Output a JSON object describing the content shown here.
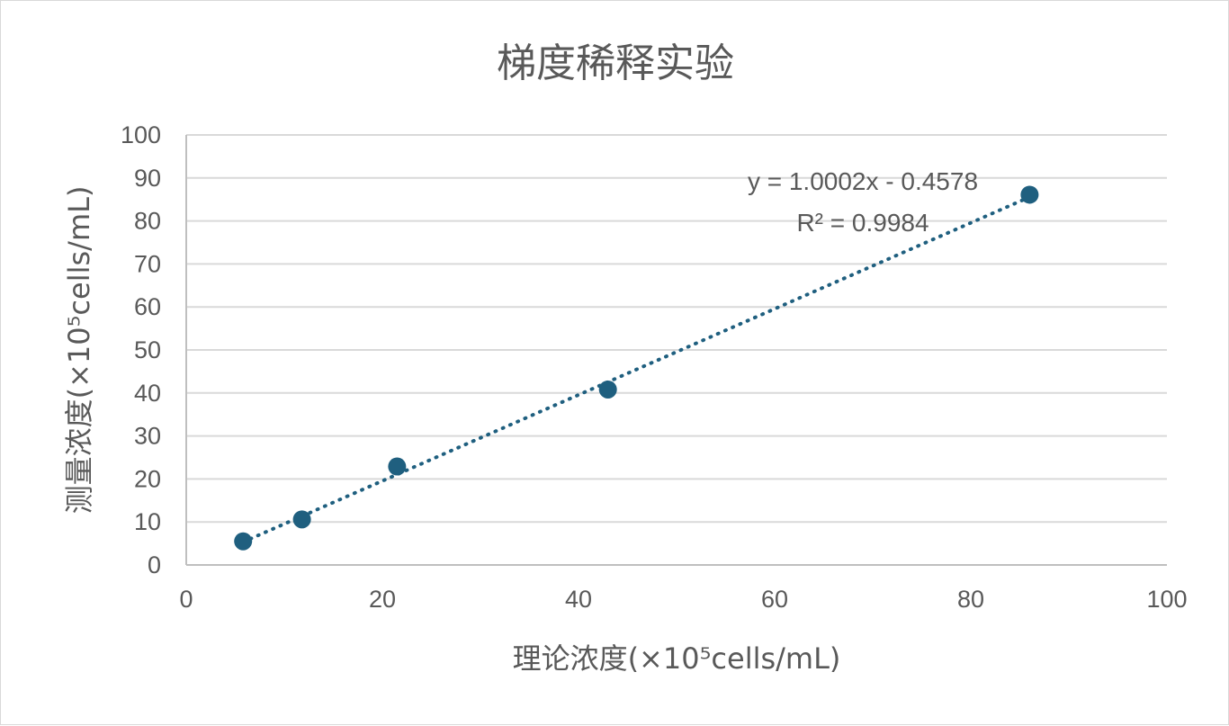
{
  "chart_data": {
    "type": "scatter",
    "title": "梯度稀释实验",
    "xlabel": "理论浓度(×10⁵cells/mL)",
    "ylabel": "测量浓度(×10⁵cells/mL)",
    "xlim": [
      0,
      100
    ],
    "ylim": [
      0,
      100
    ],
    "x_ticks": [
      "0",
      "20",
      "40",
      "60",
      "80",
      "100"
    ],
    "y_ticks": [
      "0",
      "10",
      "20",
      "30",
      "40",
      "50",
      "60",
      "70",
      "80",
      "90",
      "100"
    ],
    "grid": true,
    "points": [
      {
        "x": 5.8,
        "y": 5.5
      },
      {
        "x": 11.8,
        "y": 10.6
      },
      {
        "x": 21.5,
        "y": 22.9
      },
      {
        "x": 43.0,
        "y": 40.8
      },
      {
        "x": 86.0,
        "y": 86.1
      }
    ],
    "trendline": {
      "type": "linear",
      "slope": 1.0002,
      "intercept": -0.4578,
      "x_range": [
        5.8,
        86.0
      ],
      "equation": "y = 1.0002x - 0.4578",
      "r_squared": "R² = 0.9984"
    },
    "colors": {
      "marker": "#1f5f7f",
      "trendline": "#1f5f7f"
    }
  }
}
